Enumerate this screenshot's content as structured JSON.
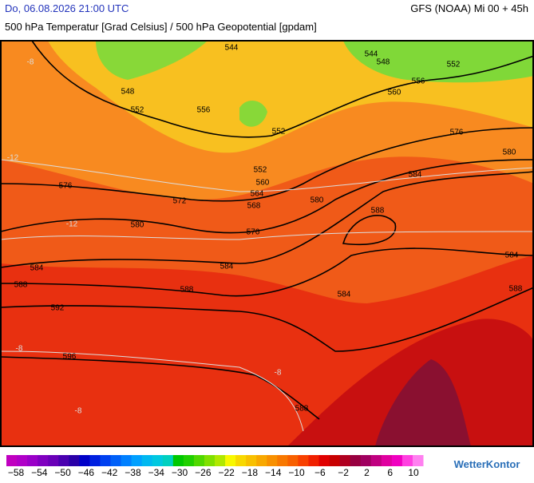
{
  "header": {
    "datetime": "Do, 06.08.2026 21:00 UTC",
    "model": "GFS (NOAA) Mi 00 + 45h",
    "subtitle": "500 hPa Temperatur [Grad Celsius] / 500 hPa Geopotential [gpdam]"
  },
  "map": {
    "contour_labels": [
      "544",
      "548",
      "552",
      "556",
      "552",
      "544",
      "548",
      "552",
      "556",
      "560",
      "576",
      "580",
      "552",
      "560",
      "564",
      "568",
      "572",
      "576",
      "580",
      "576",
      "580",
      "584",
      "588",
      "584",
      "588",
      "584",
      "584",
      "588",
      "592",
      "588",
      "596",
      "588",
      "584"
    ],
    "isotherm_labels": [
      "-8",
      "-12",
      "-12",
      "-8",
      "-8",
      "-8"
    ]
  },
  "colorbar": {
    "colors": [
      "#c000c0",
      "#b000c8",
      "#9a00c8",
      "#8000c0",
      "#6a00b8",
      "#4a00b0",
      "#2a00a8",
      "#0000c8",
      "#0020e0",
      "#0040f0",
      "#0060f8",
      "#0080ff",
      "#00a0ff",
      "#00b8f0",
      "#00c8e0",
      "#00d0c0",
      "#00c800",
      "#20d000",
      "#50d800",
      "#80e000",
      "#b0e800",
      "#f8f800",
      "#f8d800",
      "#f8c000",
      "#f8a800",
      "#f89000",
      "#f87800",
      "#f86000",
      "#f84000",
      "#f02000",
      "#e00000",
      "#c80000",
      "#b00020",
      "#980040",
      "#a00060",
      "#c00080",
      "#e000a0",
      "#f000c0",
      "#ff40e0",
      "#ff80f0"
    ],
    "labels": [
      "−58",
      "−54",
      "−50",
      "−46",
      "−42",
      "−38",
      "−34",
      "−30",
      "−26",
      "−22",
      "−18",
      "−14",
      "−10",
      "−6",
      "−2",
      "2",
      "6",
      "10"
    ]
  },
  "logo": "WetterKontor"
}
